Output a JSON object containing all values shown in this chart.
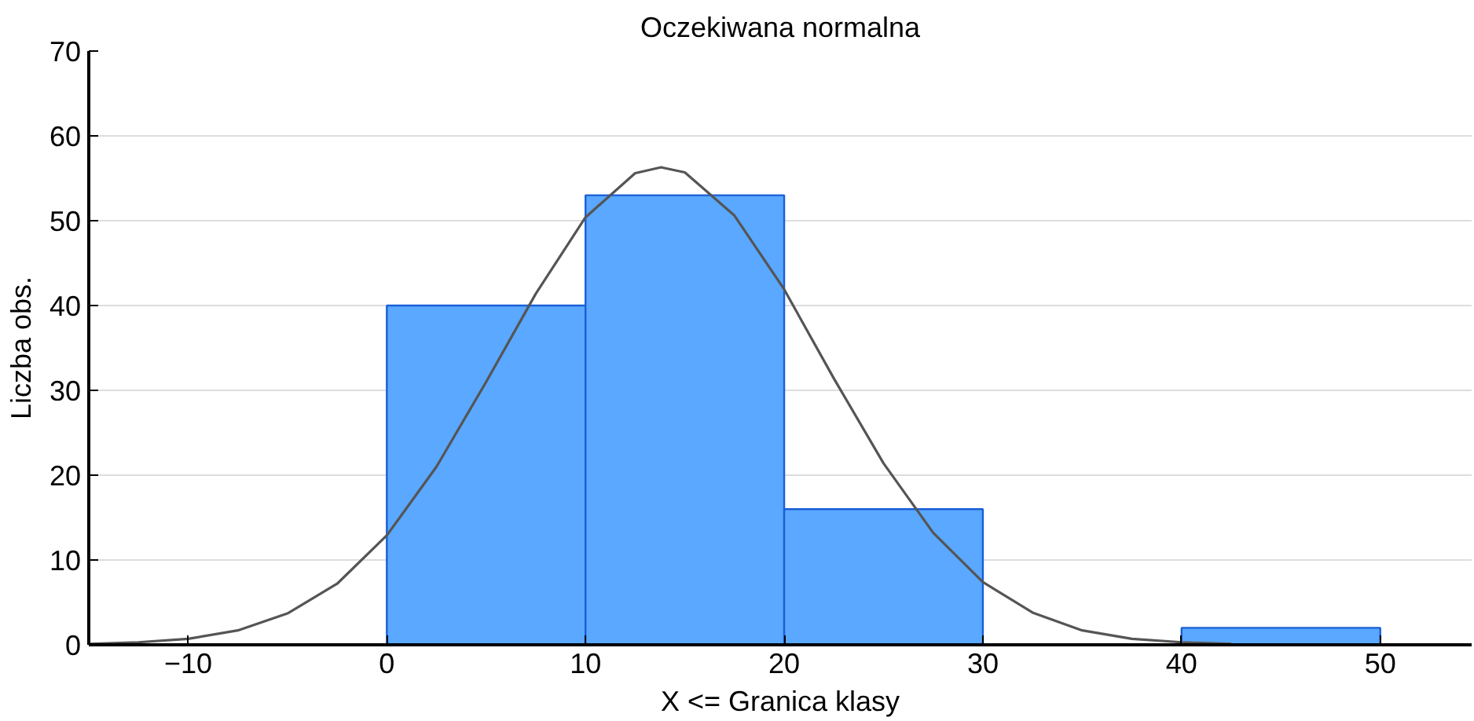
{
  "chart_data": {
    "type": "histogram",
    "title": "Oczekiwana normalna",
    "xlabel": "X <= Granica klasy",
    "ylabel": "Liczba obs.",
    "bins": [
      0,
      10,
      20,
      30,
      40,
      50
    ],
    "values": [
      40,
      53,
      16,
      0,
      2
    ],
    "color": "#5aa8ff",
    "series": [
      {
        "type": "line",
        "color": "#555555",
        "x": [
          -15,
          -12.5,
          -10,
          -7.5,
          -5,
          -2.5,
          0,
          2.5,
          5,
          7.5,
          10,
          12.5,
          13.8,
          15,
          17.5,
          20,
          22.5,
          25,
          27.5,
          30,
          32.5,
          35,
          37.5,
          40,
          42.5
        ],
        "values": [
          0.1,
          0.3,
          0.7,
          1.7,
          3.7,
          7.2,
          12.9,
          21.0,
          31.0,
          41.4,
          50.4,
          55.6,
          56.3,
          55.7,
          50.6,
          41.9,
          31.4,
          21.4,
          13.2,
          7.4,
          3.8,
          1.7,
          0.7,
          0.3,
          0.1
        ]
      }
    ],
    "xlim": [
      -15,
      54.6
    ],
    "ylim": [
      0,
      70
    ],
    "xticks": [
      -10,
      0,
      10,
      20,
      30,
      40,
      50
    ],
    "yticks": [
      0,
      10,
      20,
      30,
      40,
      50,
      60,
      70
    ],
    "grid": "y"
  }
}
